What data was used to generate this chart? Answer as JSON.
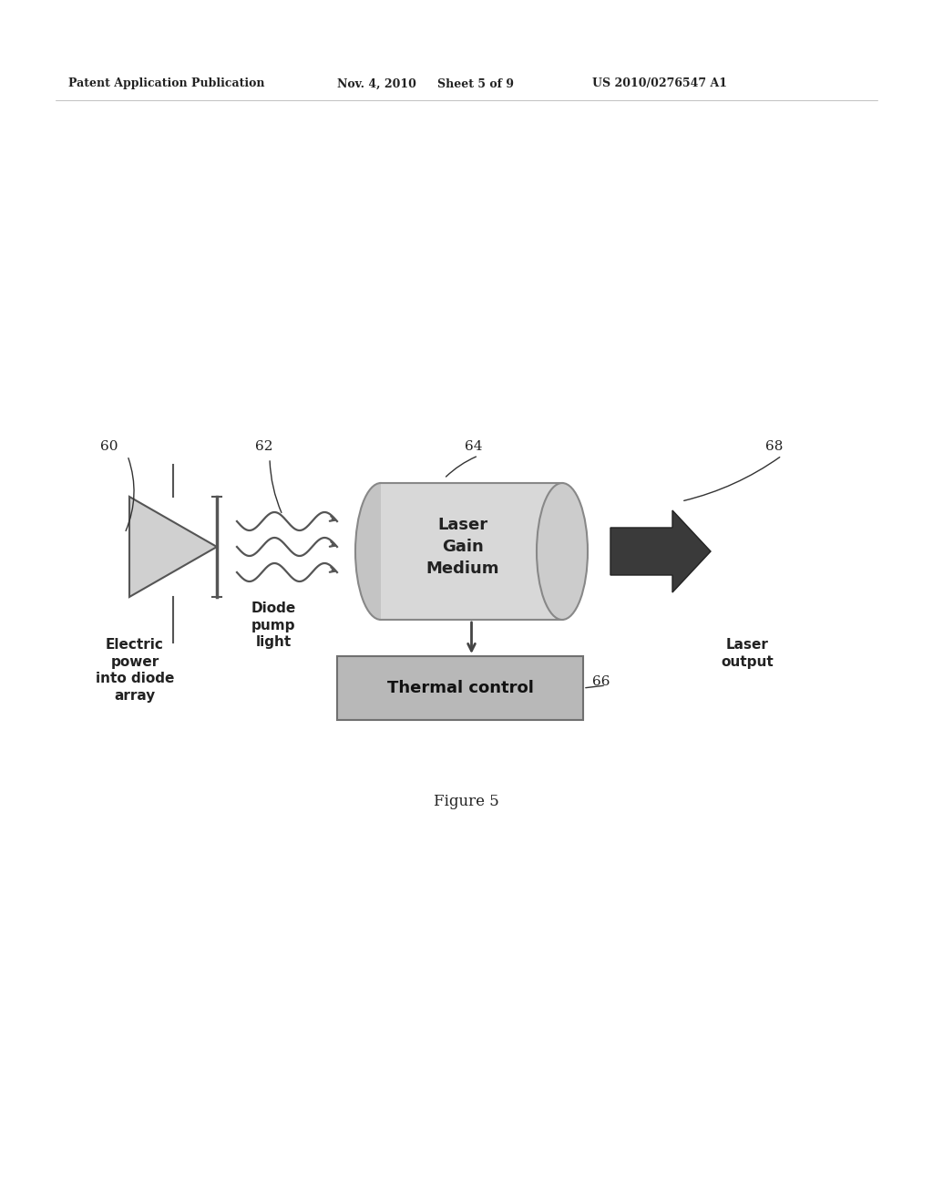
{
  "bg_color": "#ffffff",
  "header_text": "Patent Application Publication",
  "header_date": "Nov. 4, 2010",
  "header_sheet": "Sheet 5 of 9",
  "header_patent": "US 2010/0276547 A1",
  "figure_label": "Figure 5",
  "label_60": "60",
  "label_62": "62",
  "label_64": "64",
  "label_66": "66",
  "label_68": "68",
  "electric_power_text": "Electric\npower\ninto diode\narray",
  "diode_pump_text": "Diode\npump\nlight",
  "laser_gain_text": "Laser\nGain\nMedium",
  "thermal_control_text": "Thermal control",
  "laser_output_text": "Laser\noutput",
  "diode_color": "#d0d0d0",
  "cylinder_face_color": "#cccccc",
  "cylinder_body_color": "#d8d8d8",
  "arrow_color": "#3a3a3a",
  "thermal_box_color": "#b8b8b8",
  "line_color": "#555555",
  "text_color": "#222222"
}
